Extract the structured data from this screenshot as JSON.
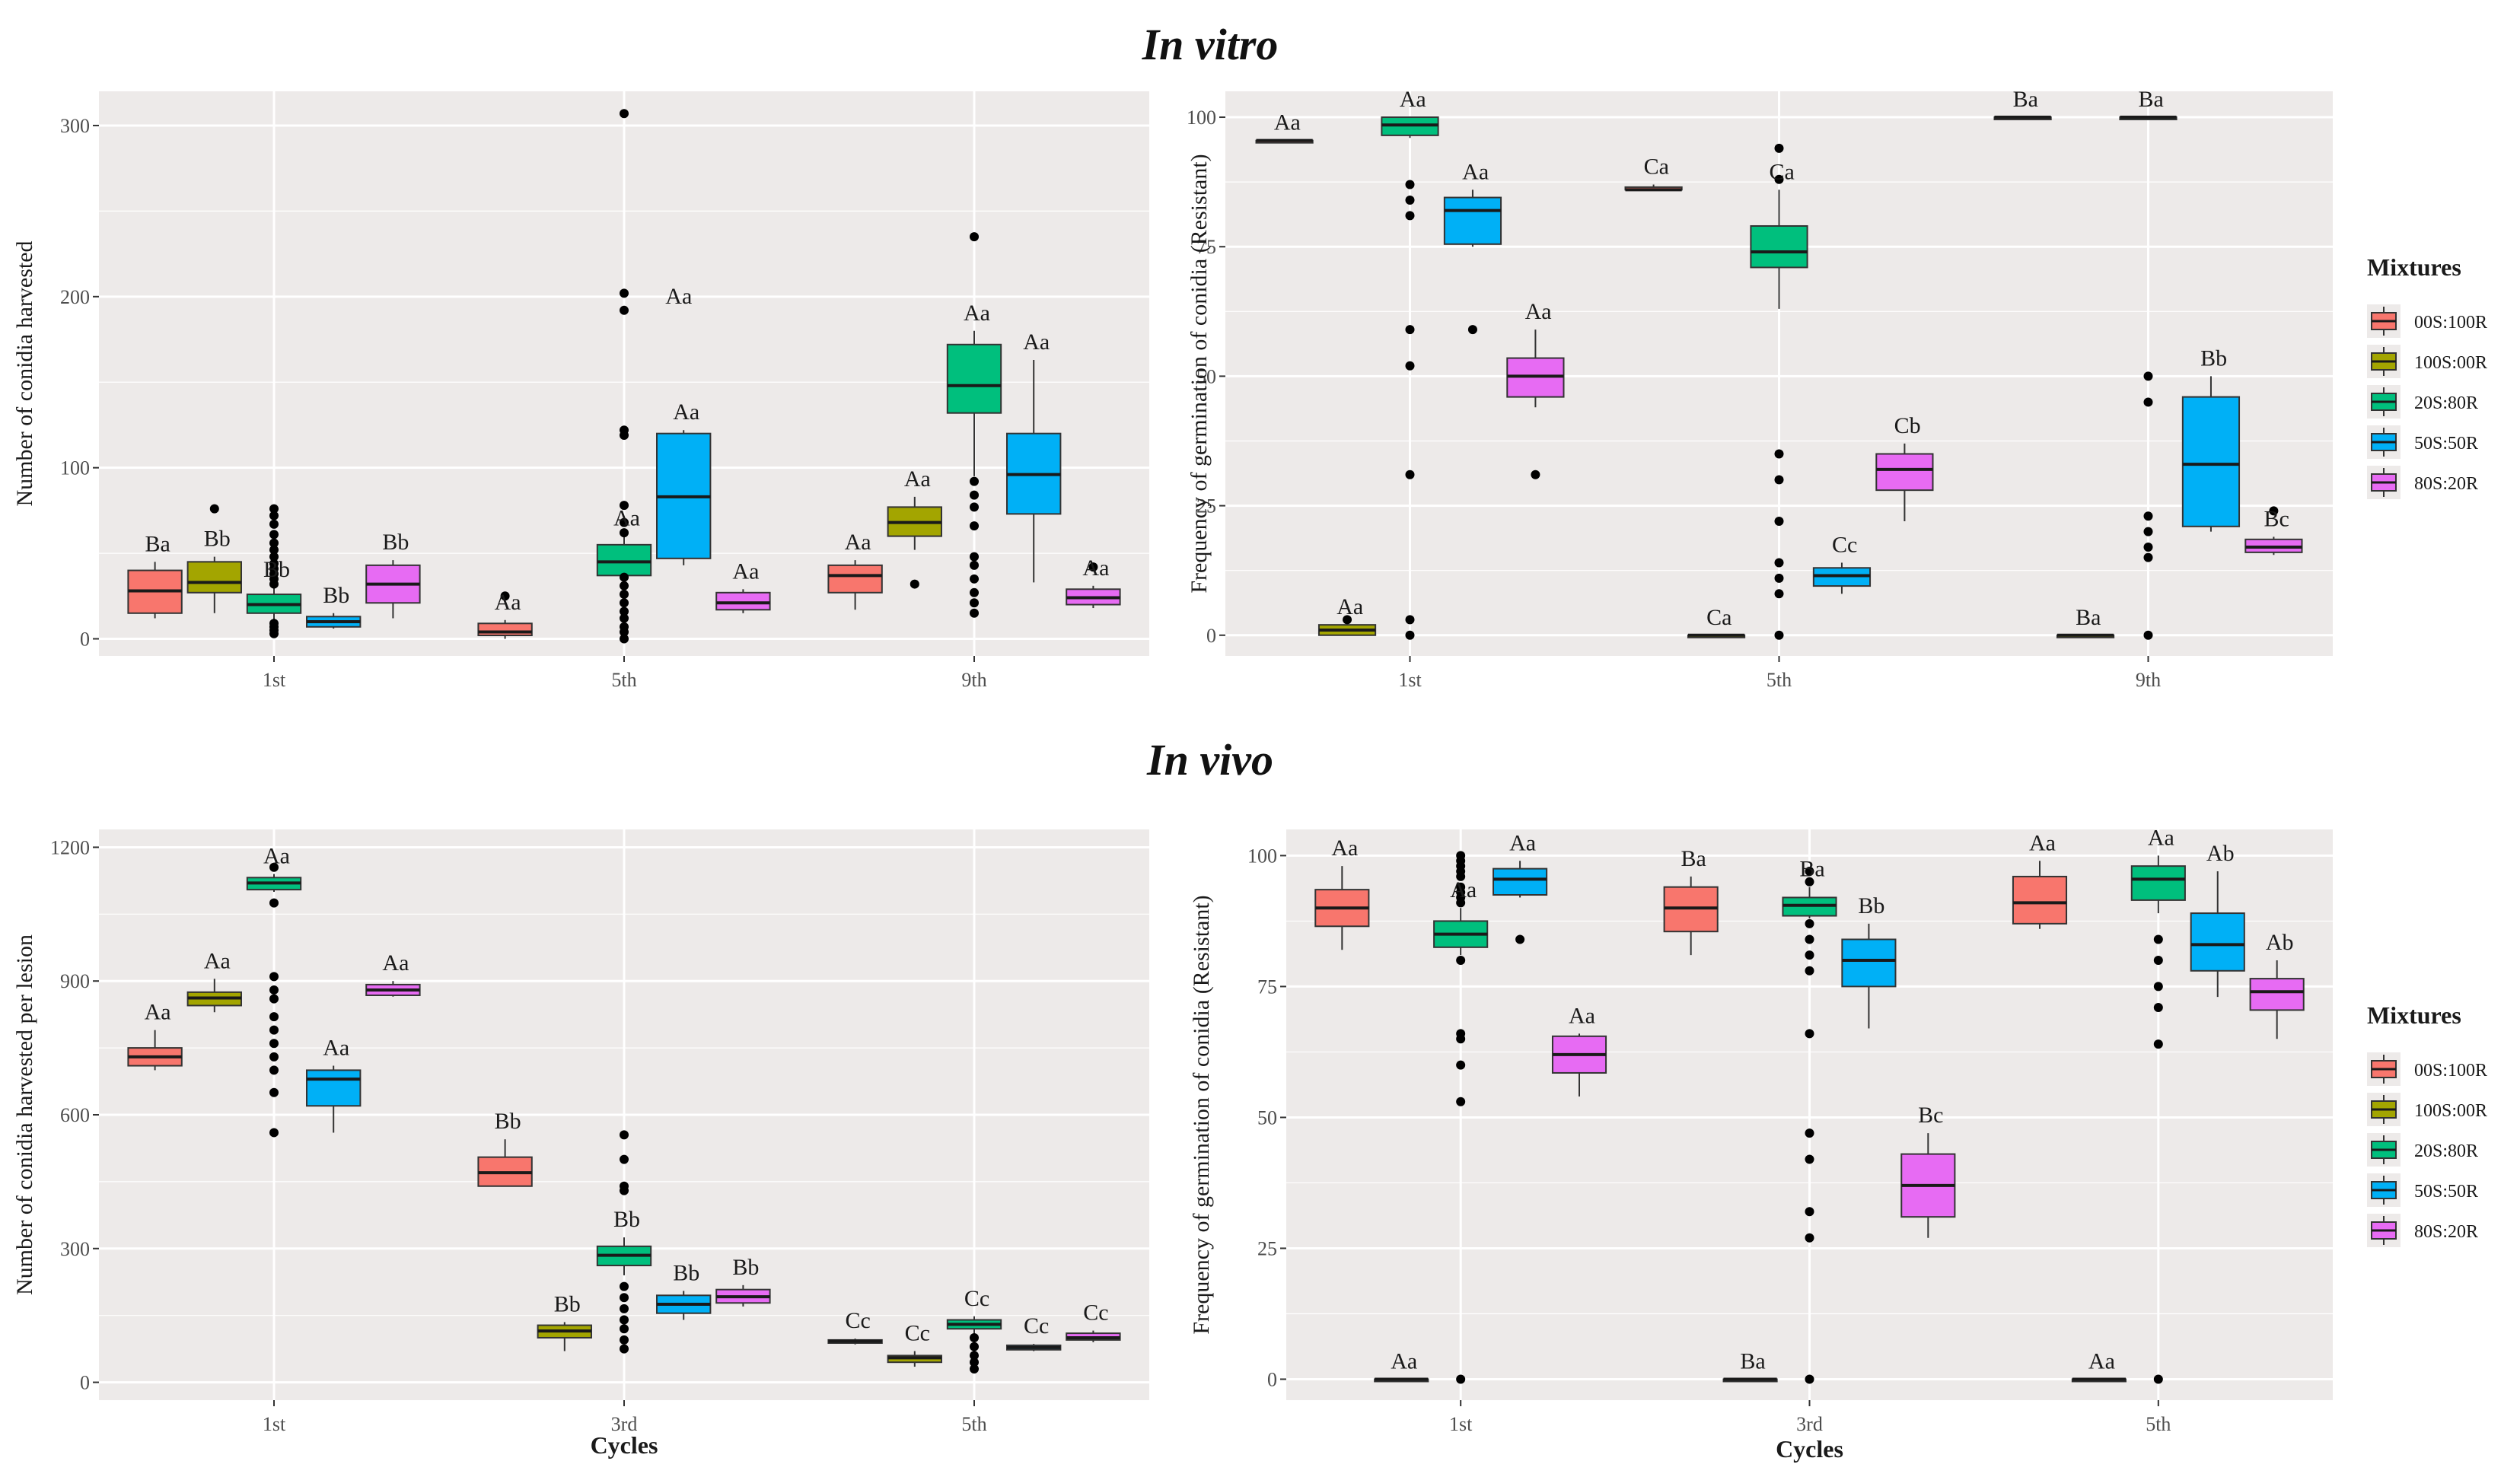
{
  "figure": {
    "title_top": "In vitro",
    "title_bottom": "In vivo"
  },
  "legend": {
    "title": "Mixtures",
    "entries": [
      {
        "label": "00S:100R",
        "color": "#F8766D"
      },
      {
        "label": "100S:00R",
        "color": "#A3A500"
      },
      {
        "label": "20S:80R",
        "color": "#00BF7D"
      },
      {
        "label": "50S:50R",
        "color": "#00B0F6"
      },
      {
        "label": "80S:20R",
        "color": "#E76BF3"
      }
    ]
  },
  "chart_data": [
    {
      "type": "boxplot",
      "panel": "in-vitro-conidia",
      "ylabel": "Number of conidia harvested",
      "xlabel": "",
      "categories": [
        "1st",
        "5th",
        "9th"
      ],
      "ylim": [
        -10,
        320
      ],
      "yticks": [
        0,
        100,
        200,
        300
      ],
      "series": [
        {
          "name": "00S:100R",
          "boxes": [
            {
              "min": 12,
              "q1": 15,
              "median": 28,
              "q3": 40,
              "max": 45,
              "outliers": [],
              "label": "Ba"
            },
            {
              "min": 0,
              "q1": 2,
              "median": 4,
              "q3": 9,
              "max": 11,
              "outliers": [
                25
              ],
              "label": "Aa"
            },
            {
              "min": 17,
              "q1": 27,
              "median": 37,
              "q3": 43,
              "max": 46,
              "outliers": [],
              "label": "Aa"
            }
          ]
        },
        {
          "name": "100S:00R",
          "boxes": [
            {
              "min": 15,
              "q1": 27,
              "median": 33,
              "q3": 45,
              "max": 48,
              "outliers": [
                76
              ],
              "label": "Bb"
            },
            null,
            {
              "min": 52,
              "q1": 60,
              "median": 68,
              "q3": 77,
              "max": 83,
              "outliers": [
                32
              ],
              "label": "Aa"
            }
          ]
        },
        {
          "name": "20S:80R",
          "boxes": [
            {
              "min": 10,
              "q1": 15,
              "median": 20,
              "q3": 26,
              "max": 30,
              "outliers": [
                3,
                5,
                7,
                9,
                32,
                35,
                38,
                41,
                44,
                48,
                52,
                56,
                61,
                67,
                72,
                76
              ],
              "label": "Bb"
            },
            {
              "min": 30,
              "q1": 37,
              "median": 45,
              "q3": 55,
              "max": 60,
              "outliers": [
                0,
                4,
                7,
                12,
                16,
                21,
                26,
                31,
                36,
                62,
                68,
                78,
                119,
                122,
                192,
                202,
                307
              ],
              "label": "Aa"
            },
            {
              "min": 95,
              "q1": 132,
              "median": 148,
              "q3": 172,
              "max": 180,
              "outliers": [
                15,
                21,
                27,
                35,
                43,
                48,
                66,
                77,
                84,
                92,
                235
              ],
              "label": "Aa"
            }
          ]
        },
        {
          "name": "50S:50R",
          "boxes": [
            {
              "min": 6,
              "q1": 7,
              "median": 10,
              "q3": 13,
              "max": 15,
              "outliers": [],
              "label": "Bb"
            },
            {
              "min": 43,
              "q1": 47,
              "median": 83,
              "q3": 120,
              "max": 122,
              "outliers": [],
              "label": "Aa"
            },
            {
              "min": 33,
              "q1": 73,
              "median": 96,
              "q3": 120,
              "max": 163,
              "outliers": [],
              "label": "Aa"
            }
          ]
        },
        {
          "name": "80S:20R",
          "boxes": [
            {
              "min": 12,
              "q1": 21,
              "median": 32,
              "q3": 43,
              "max": 46,
              "outliers": [],
              "label": "Bb"
            },
            {
              "min": 15,
              "q1": 17,
              "median": 21,
              "q3": 27,
              "max": 29,
              "outliers": [],
              "label": "Aa"
            },
            {
              "min": 18,
              "q1": 20,
              "median": 24,
              "q3": 29,
              "max": 31,
              "outliers": [
                42
              ],
              "label": "Aa"
            }
          ]
        }
      ],
      "box_extra_labels": [
        {
          "category": "5th",
          "series": "100S:00R",
          "y": 196,
          "label": "Aa"
        }
      ]
    },
    {
      "type": "boxplot",
      "panel": "in-vitro-germination",
      "ylabel": "Frequency of germination of conidia (Resistant)",
      "xlabel": "",
      "categories": [
        "1st",
        "5th",
        "9th"
      ],
      "ylim": [
        -4,
        105
      ],
      "yticks": [
        0,
        25,
        50,
        75,
        100
      ],
      "series": [
        {
          "name": "00S:100R",
          "boxes": [
            {
              "min": 95.5,
              "q1": 95.5,
              "median": 95.5,
              "q3": 95.5,
              "max": 95.5,
              "outliers": [],
              "label": "Aa"
            },
            {
              "min": 86,
              "q1": 86,
              "median": 86,
              "q3": 86.5,
              "max": 87,
              "outliers": [],
              "label": "Ca"
            },
            {
              "min": 100,
              "q1": 100,
              "median": 100,
              "q3": 100,
              "max": 100,
              "outliers": [],
              "label": "Ba"
            }
          ]
        },
        {
          "name": "100S:00R",
          "boxes": [
            {
              "min": 0,
              "q1": 0,
              "median": 1,
              "q3": 2,
              "max": 2,
              "outliers": [
                3
              ],
              "label": "Aa"
            },
            {
              "min": 0,
              "q1": 0,
              "median": 0,
              "q3": 0,
              "max": 0,
              "outliers": [],
              "label": "Ca"
            },
            {
              "min": 0,
              "q1": 0,
              "median": 0,
              "q3": 0,
              "max": 0,
              "outliers": [],
              "label": "Ba"
            }
          ]
        },
        {
          "name": "20S:80R",
          "boxes": [
            {
              "min": 96,
              "q1": 96.5,
              "median": 98.5,
              "q3": 100,
              "max": 100,
              "outliers": [
                0,
                3,
                31,
                52,
                59,
                81,
                84,
                87
              ],
              "label": "Aa"
            },
            {
              "min": 63,
              "q1": 71,
              "median": 74,
              "q3": 79,
              "max": 86,
              "outliers": [
                0,
                8,
                11,
                14,
                22,
                30,
                35,
                88,
                94
              ],
              "label": "Ca"
            },
            {
              "min": 100,
              "q1": 100,
              "median": 100,
              "q3": 100,
              "max": 100,
              "outliers": [
                0,
                15,
                17,
                20,
                23,
                45,
                50
              ],
              "label": "Ba"
            }
          ]
        },
        {
          "name": "50S:50R",
          "boxes": [
            {
              "min": 75,
              "q1": 75.5,
              "median": 82,
              "q3": 84.5,
              "max": 86,
              "outliers": [
                59
              ],
              "label": "Aa"
            },
            {
              "min": 8,
              "q1": 9.5,
              "median": 11.5,
              "q3": 13,
              "max": 14,
              "outliers": [],
              "label": "Cc"
            },
            {
              "min": 20,
              "q1": 21,
              "median": 33,
              "q3": 46,
              "max": 50,
              "outliers": [],
              "label": "Bb"
            }
          ]
        },
        {
          "name": "80S:20R",
          "boxes": [
            {
              "min": 44,
              "q1": 46,
              "median": 50,
              "q3": 53.5,
              "max": 59,
              "outliers": [
                31
              ],
              "label": "Aa"
            },
            {
              "min": 22,
              "q1": 28,
              "median": 32,
              "q3": 35,
              "max": 37,
              "outliers": [],
              "label": "Cb"
            },
            {
              "min": 15.5,
              "q1": 16,
              "median": 17,
              "q3": 18.5,
              "max": 19,
              "outliers": [
                24
              ],
              "label": "Bc"
            }
          ]
        }
      ],
      "box_extra_labels": []
    },
    {
      "type": "boxplot",
      "panel": "in-vivo-conidia",
      "ylabel": "Number of conidia harvested per lesion",
      "xlabel": "Cycles",
      "categories": [
        "1st",
        "3rd",
        "5th"
      ],
      "ylim": [
        -40,
        1240
      ],
      "yticks": [
        0,
        300,
        600,
        900,
        1200
      ],
      "series": [
        {
          "name": "00S:100R",
          "boxes": [
            {
              "min": 700,
              "q1": 710,
              "median": 730,
              "q3": 750,
              "max": 790,
              "outliers": [],
              "label": "Aa"
            },
            {
              "min": 440,
              "q1": 440,
              "median": 470,
              "q3": 505,
              "max": 545,
              "outliers": [],
              "label": "Bb"
            },
            {
              "min": 85,
              "q1": 88,
              "median": 92,
              "q3": 95,
              "max": 98,
              "outliers": [],
              "label": "Cc"
            }
          ]
        },
        {
          "name": "100S:00R",
          "boxes": [
            {
              "min": 830,
              "q1": 845,
              "median": 862,
              "q3": 875,
              "max": 905,
              "outliers": [],
              "label": "Aa"
            },
            {
              "min": 70,
              "q1": 100,
              "median": 115,
              "q3": 128,
              "max": 135,
              "outliers": [],
              "label": "Bb"
            },
            {
              "min": 35,
              "q1": 45,
              "median": 55,
              "q3": 60,
              "max": 70,
              "outliers": [],
              "label": "Cc"
            }
          ]
        },
        {
          "name": "20S:80R",
          "boxes": [
            {
              "min": 1100,
              "q1": 1105,
              "median": 1120,
              "q3": 1132,
              "max": 1140,
              "outliers": [
                560,
                650,
                700,
                730,
                760,
                790,
                820,
                860,
                880,
                910,
                1075,
                1155
              ],
              "label": "Aa"
            },
            {
              "min": 240,
              "q1": 262,
              "median": 285,
              "q3": 305,
              "max": 325,
              "outliers": [
                75,
                95,
                120,
                140,
                165,
                190,
                215,
                430,
                440,
                500,
                555
              ],
              "label": "Bb"
            },
            {
              "min": 30,
              "q1": 120,
              "median": 130,
              "q3": 140,
              "max": 148,
              "outliers": [
                30,
                45,
                60,
                80,
                100
              ],
              "label": "Cc"
            }
          ]
        },
        {
          "name": "50S:50R",
          "boxes": [
            {
              "min": 560,
              "q1": 620,
              "median": 680,
              "q3": 700,
              "max": 710,
              "outliers": [],
              "label": "Aa"
            },
            {
              "min": 140,
              "q1": 155,
              "median": 175,
              "q3": 195,
              "max": 205,
              "outliers": [],
              "label": "Bb"
            },
            {
              "min": 70,
              "q1": 73,
              "median": 78,
              "q3": 83,
              "max": 86,
              "outliers": [],
              "label": "Cc"
            }
          ]
        },
        {
          "name": "80S:20R",
          "boxes": [
            {
              "min": 865,
              "q1": 868,
              "median": 880,
              "q3": 892,
              "max": 900,
              "outliers": [],
              "label": "Aa"
            },
            {
              "min": 170,
              "q1": 178,
              "median": 192,
              "q3": 208,
              "max": 218,
              "outliers": [],
              "label": "Bb"
            },
            {
              "min": 90,
              "q1": 95,
              "median": 100,
              "q3": 110,
              "max": 116,
              "outliers": [],
              "label": "Cc"
            }
          ]
        }
      ],
      "box_extra_labels": []
    },
    {
      "type": "boxplot",
      "panel": "in-vivo-germination",
      "ylabel": "Frequency of germination of conidia (Resistant)",
      "xlabel": "Cycles",
      "categories": [
        "1st",
        "3rd",
        "5th"
      ],
      "ylim": [
        -4,
        105
      ],
      "yticks": [
        0,
        25,
        50,
        75,
        100
      ],
      "series": [
        {
          "name": "00S:100R",
          "boxes": [
            {
              "min": 82,
              "q1": 86.5,
              "median": 90,
              "q3": 93.5,
              "max": 98,
              "outliers": [],
              "label": "Aa"
            },
            {
              "min": 81,
              "q1": 85.5,
              "median": 90,
              "q3": 94,
              "max": 96,
              "outliers": [],
              "label": "Ba"
            },
            {
              "min": 86,
              "q1": 87,
              "median": 91,
              "q3": 96,
              "max": 99,
              "outliers": [],
              "label": "Aa"
            }
          ]
        },
        {
          "name": "100S:00R",
          "boxes": [
            {
              "min": 0,
              "q1": 0,
              "median": 0,
              "q3": 0,
              "max": 0,
              "outliers": [],
              "label": "Aa"
            },
            {
              "min": 0,
              "q1": 0,
              "median": 0,
              "q3": 0,
              "max": 0,
              "outliers": [],
              "label": "Ba"
            },
            {
              "min": 0,
              "q1": 0,
              "median": 0,
              "q3": 0,
              "max": 0,
              "outliers": [],
              "label": "Aa"
            }
          ]
        },
        {
          "name": "20S:80R",
          "boxes": [
            {
              "min": 81,
              "q1": 82.5,
              "median": 85,
              "q3": 87.5,
              "max": 90,
              "outliers": [
                0,
                53,
                60,
                65,
                66,
                80,
                91,
                92,
                93,
                94,
                96,
                97,
                98,
                99,
                100
              ],
              "label": "Aa"
            },
            {
              "min": 88,
              "q1": 88.5,
              "median": 90.5,
              "q3": 92,
              "max": 94,
              "outliers": [
                0,
                27,
                32,
                42,
                47,
                66,
                78,
                81,
                84,
                87,
                95,
                97
              ],
              "label": "Ba"
            },
            {
              "min": 89,
              "q1": 91.5,
              "median": 95.5,
              "q3": 98,
              "max": 100,
              "outliers": [
                0,
                64,
                71,
                75,
                80,
                84
              ],
              "label": "Aa"
            }
          ]
        },
        {
          "name": "50S:50R",
          "boxes": [
            {
              "min": 92,
              "q1": 92.5,
              "median": 95.5,
              "q3": 97.5,
              "max": 99,
              "outliers": [
                84
              ],
              "label": "Aa"
            },
            {
              "min": 67,
              "q1": 75,
              "median": 80,
              "q3": 84,
              "max": 87,
              "outliers": [],
              "label": "Bb"
            },
            {
              "min": 73,
              "q1": 78,
              "median": 83,
              "q3": 89,
              "max": 97,
              "outliers": [],
              "label": "Ab"
            }
          ]
        },
        {
          "name": "80S:20R",
          "boxes": [
            {
              "min": 54,
              "q1": 58.5,
              "median": 62,
              "q3": 65.5,
              "max": 66,
              "outliers": [],
              "label": "Aa"
            },
            {
              "min": 27,
              "q1": 31,
              "median": 37,
              "q3": 43,
              "max": 47,
              "outliers": [],
              "label": "Bc"
            },
            {
              "min": 65,
              "q1": 70.5,
              "median": 74,
              "q3": 76.5,
              "max": 80,
              "outliers": [],
              "label": "Ab"
            }
          ]
        }
      ],
      "box_extra_labels": []
    }
  ]
}
